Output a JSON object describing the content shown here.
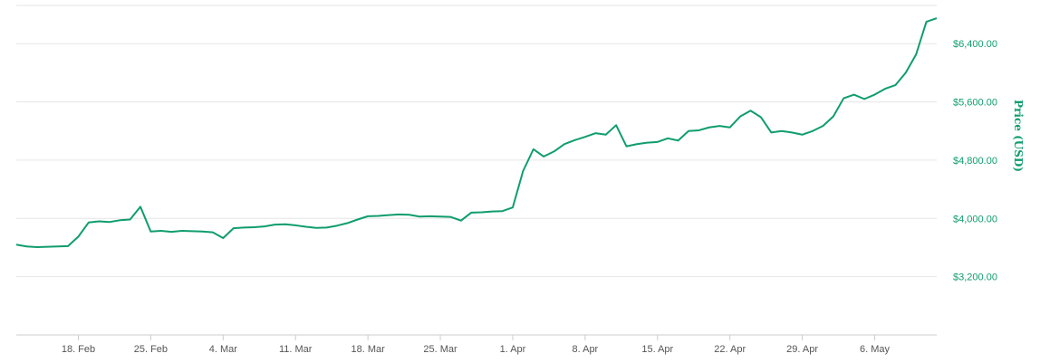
{
  "chart_data": {
    "type": "line",
    "title": "",
    "xlabel": "",
    "ylabel": "Price (USD)",
    "ylim": [
      2400,
      6900
    ],
    "xlim": [
      "2019-02-12",
      "2019-05-12"
    ],
    "grid": true,
    "y_ticks": [
      {
        "value": 3200,
        "label": "$3,200.00"
      },
      {
        "value": 4000,
        "label": "$4,000.00"
      },
      {
        "value": 4800,
        "label": "$4,800.00"
      },
      {
        "value": 5600,
        "label": "$5,600.00"
      },
      {
        "value": 6400,
        "label": "$6,400.00"
      }
    ],
    "x_ticks": [
      {
        "date": "2019-02-18",
        "label": "18. Feb"
      },
      {
        "date": "2019-02-25",
        "label": "25. Feb"
      },
      {
        "date": "2019-03-04",
        "label": "4. Mar"
      },
      {
        "date": "2019-03-11",
        "label": "11. Mar"
      },
      {
        "date": "2019-03-18",
        "label": "18. Mar"
      },
      {
        "date": "2019-03-25",
        "label": "25. Mar"
      },
      {
        "date": "2019-04-01",
        "label": "1. Apr"
      },
      {
        "date": "2019-04-08",
        "label": "8. Apr"
      },
      {
        "date": "2019-04-15",
        "label": "15. Apr"
      },
      {
        "date": "2019-04-22",
        "label": "22. Apr"
      },
      {
        "date": "2019-04-29",
        "label": "29. Apr"
      },
      {
        "date": "2019-05-06",
        "label": "6. May"
      }
    ],
    "series": [
      {
        "color": "#0f9d6e",
        "points": [
          [
            "2019-02-12",
            3640
          ],
          [
            "2019-02-13",
            3615
          ],
          [
            "2019-02-14",
            3605
          ],
          [
            "2019-02-15",
            3610
          ],
          [
            "2019-02-16",
            3615
          ],
          [
            "2019-02-17",
            3620
          ],
          [
            "2019-02-18",
            3750
          ],
          [
            "2019-02-19",
            3945
          ],
          [
            "2019-02-20",
            3960
          ],
          [
            "2019-02-21",
            3950
          ],
          [
            "2019-02-22",
            3975
          ],
          [
            "2019-02-23",
            3985
          ],
          [
            "2019-02-24",
            4160
          ],
          [
            "2019-02-25",
            3820
          ],
          [
            "2019-02-26",
            3830
          ],
          [
            "2019-02-27",
            3815
          ],
          [
            "2019-02-28",
            3830
          ],
          [
            "2019-03-01",
            3825
          ],
          [
            "2019-03-02",
            3820
          ],
          [
            "2019-03-03",
            3810
          ],
          [
            "2019-03-04",
            3730
          ],
          [
            "2019-03-05",
            3865
          ],
          [
            "2019-03-06",
            3875
          ],
          [
            "2019-03-07",
            3880
          ],
          [
            "2019-03-08",
            3890
          ],
          [
            "2019-03-09",
            3915
          ],
          [
            "2019-03-10",
            3920
          ],
          [
            "2019-03-11",
            3905
          ],
          [
            "2019-03-12",
            3885
          ],
          [
            "2019-03-13",
            3870
          ],
          [
            "2019-03-14",
            3875
          ],
          [
            "2019-03-15",
            3900
          ],
          [
            "2019-03-16",
            3935
          ],
          [
            "2019-03-17",
            3985
          ],
          [
            "2019-03-18",
            4030
          ],
          [
            "2019-03-19",
            4035
          ],
          [
            "2019-03-20",
            4045
          ],
          [
            "2019-03-21",
            4055
          ],
          [
            "2019-03-22",
            4050
          ],
          [
            "2019-03-23",
            4025
          ],
          [
            "2019-03-24",
            4030
          ],
          [
            "2019-03-25",
            4025
          ],
          [
            "2019-03-26",
            4020
          ],
          [
            "2019-03-27",
            3970
          ],
          [
            "2019-03-28",
            4080
          ],
          [
            "2019-03-29",
            4085
          ],
          [
            "2019-03-30",
            4095
          ],
          [
            "2019-03-31",
            4100
          ],
          [
            "2019-04-01",
            4150
          ],
          [
            "2019-04-02",
            4650
          ],
          [
            "2019-04-03",
            4950
          ],
          [
            "2019-04-04",
            4850
          ],
          [
            "2019-04-05",
            4920
          ],
          [
            "2019-04-06",
            5020
          ],
          [
            "2019-04-07",
            5075
          ],
          [
            "2019-04-08",
            5120
          ],
          [
            "2019-04-09",
            5170
          ],
          [
            "2019-04-10",
            5150
          ],
          [
            "2019-04-11",
            5280
          ],
          [
            "2019-04-12",
            4990
          ],
          [
            "2019-04-13",
            5020
          ],
          [
            "2019-04-14",
            5040
          ],
          [
            "2019-04-15",
            5050
          ],
          [
            "2019-04-16",
            5100
          ],
          [
            "2019-04-17",
            5070
          ],
          [
            "2019-04-18",
            5200
          ],
          [
            "2019-04-19",
            5210
          ],
          [
            "2019-04-20",
            5250
          ],
          [
            "2019-04-21",
            5270
          ],
          [
            "2019-04-22",
            5250
          ],
          [
            "2019-04-23",
            5400
          ],
          [
            "2019-04-24",
            5480
          ],
          [
            "2019-04-25",
            5390
          ],
          [
            "2019-04-26",
            5180
          ],
          [
            "2019-04-27",
            5200
          ],
          [
            "2019-04-28",
            5180
          ],
          [
            "2019-04-29",
            5150
          ],
          [
            "2019-04-30",
            5200
          ],
          [
            "2019-05-01",
            5270
          ],
          [
            "2019-05-02",
            5400
          ],
          [
            "2019-05-03",
            5650
          ],
          [
            "2019-05-04",
            5700
          ],
          [
            "2019-05-05",
            5640
          ],
          [
            "2019-05-06",
            5700
          ],
          [
            "2019-05-07",
            5780
          ],
          [
            "2019-05-08",
            5830
          ],
          [
            "2019-05-09",
            6000
          ],
          [
            "2019-05-10",
            6250
          ],
          [
            "2019-05-11",
            6700
          ],
          [
            "2019-05-12",
            6750
          ]
        ]
      }
    ]
  }
}
